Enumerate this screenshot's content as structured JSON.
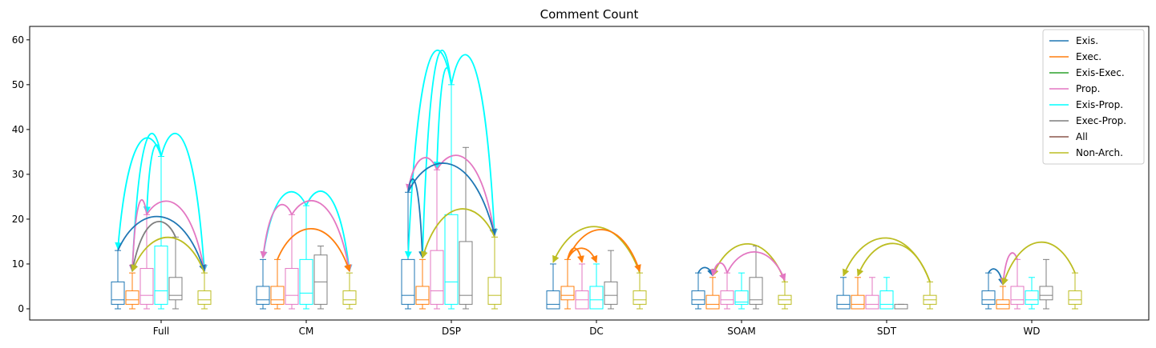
{
  "chart_data": {
    "type": "box",
    "title": "Comment Count",
    "xlabel": "",
    "ylabel": "",
    "ylim": [
      -2.5,
      63
    ],
    "yticks": [
      0,
      10,
      20,
      30,
      40,
      50,
      60
    ],
    "categories": [
      "Full",
      "CM",
      "DSP",
      "DC",
      "SOAM",
      "SDT",
      "WD"
    ],
    "series": [
      {
        "name": "Exis.",
        "color": "#1f77b4"
      },
      {
        "name": "Exec.",
        "color": "#ff7f0e"
      },
      {
        "name": "Exis-Exec.",
        "color": "#2ca02c"
      },
      {
        "name": "Prop.",
        "color": "#e377c2"
      },
      {
        "name": "Exis-Prop.",
        "color": "#00ffff"
      },
      {
        "name": "Exec-Prop.",
        "color": "#7f7f7f"
      },
      {
        "name": "All",
        "color": "#8c564b"
      },
      {
        "name": "Non-Arch.",
        "color": "#bcbd22"
      }
    ],
    "legend_position": "top-right",
    "boxes": [
      {
        "category": "Full",
        "series": "Exis.",
        "whislo": 0,
        "q1": 1,
        "med": 2,
        "q3": 6,
        "whishi": 13
      },
      {
        "category": "Full",
        "series": "Exec.",
        "whislo": 0,
        "q1": 1,
        "med": 2,
        "q3": 4,
        "whishi": 8
      },
      {
        "category": "Full",
        "series": "Prop.",
        "whislo": 0,
        "q1": 1,
        "med": 3,
        "q3": 9,
        "whishi": 21
      },
      {
        "category": "Full",
        "series": "Exis-Prop.",
        "whislo": 0,
        "q1": 1,
        "med": 4,
        "q3": 14,
        "whishi": 34
      },
      {
        "category": "Full",
        "series": "Exec-Prop.",
        "whislo": 0,
        "q1": 2,
        "med": 3,
        "q3": 7,
        "whishi": 16
      },
      {
        "category": "Full",
        "series": "Non-Arch.",
        "whislo": 0,
        "q1": 1,
        "med": 2,
        "q3": 4,
        "whishi": 8
      },
      {
        "category": "CM",
        "series": "Exis.",
        "whislo": 0,
        "q1": 1,
        "med": 2,
        "q3": 5,
        "whishi": 11
      },
      {
        "category": "CM",
        "series": "Exec.",
        "whislo": 0,
        "q1": 1,
        "med": 2,
        "q3": 5,
        "whishi": 11
      },
      {
        "category": "CM",
        "series": "Prop.",
        "whislo": 0,
        "q1": 1,
        "med": 3,
        "q3": 9,
        "whishi": 21
      },
      {
        "category": "CM",
        "series": "Exis-Prop.",
        "whislo": 0,
        "q1": 1,
        "med": 3.5,
        "q3": 11,
        "whishi": 23
      },
      {
        "category": "CM",
        "series": "Exec-Prop.",
        "whislo": 0,
        "q1": 1,
        "med": 6,
        "q3": 12,
        "whishi": 14
      },
      {
        "category": "CM",
        "series": "Non-Arch.",
        "whislo": 0,
        "q1": 1,
        "med": 2,
        "q3": 4,
        "whishi": 8
      },
      {
        "category": "DSP",
        "series": "Exis.",
        "whislo": 0,
        "q1": 1,
        "med": 3,
        "q3": 11,
        "whishi": 26
      },
      {
        "category": "DSP",
        "series": "Exec.",
        "whislo": 0,
        "q1": 1,
        "med": 2,
        "q3": 5,
        "whishi": 11
      },
      {
        "category": "DSP",
        "series": "Prop.",
        "whislo": 0,
        "q1": 1,
        "med": 4,
        "q3": 13,
        "whishi": 31
      },
      {
        "category": "DSP",
        "series": "Exis-Prop.",
        "whislo": 0,
        "q1": 1,
        "med": 6,
        "q3": 21,
        "whishi": 50
      },
      {
        "category": "DSP",
        "series": "Exec-Prop.",
        "whislo": 0,
        "q1": 1,
        "med": 3,
        "q3": 15,
        "whishi": 36
      },
      {
        "category": "DSP",
        "series": "Non-Arch.",
        "whislo": 0,
        "q1": 1,
        "med": 3,
        "q3": 7,
        "whishi": 16
      },
      {
        "category": "DC",
        "series": "Exis.",
        "whislo": 0,
        "q1": 0,
        "med": 1,
        "q3": 4,
        "whishi": 10
      },
      {
        "category": "DC",
        "series": "Exec.",
        "whislo": 0,
        "q1": 2,
        "med": 3,
        "q3": 5,
        "whishi": 11
      },
      {
        "category": "DC",
        "series": "Prop.",
        "whislo": 0,
        "q1": 0,
        "med": 2,
        "q3": 4,
        "whishi": 10
      },
      {
        "category": "DC",
        "series": "Exis-Prop.",
        "whislo": 0,
        "q1": 0,
        "med": 2,
        "q3": 5,
        "whishi": 10
      },
      {
        "category": "DC",
        "series": "Exec-Prop.",
        "whislo": 0,
        "q1": 1,
        "med": 3,
        "q3": 6,
        "whishi": 13
      },
      {
        "category": "DC",
        "series": "Non-Arch.",
        "whislo": 0,
        "q1": 1,
        "med": 2,
        "q3": 4,
        "whishi": 8
      },
      {
        "category": "SOAM",
        "series": "Exis.",
        "whislo": 0,
        "q1": 1,
        "med": 2,
        "q3": 4,
        "whishi": 8
      },
      {
        "category": "SOAM",
        "series": "Exec.",
        "whislo": 0,
        "q1": 0,
        "med": 1,
        "q3": 3,
        "whishi": 7
      },
      {
        "category": "SOAM",
        "series": "Prop.",
        "whislo": 0,
        "q1": 1,
        "med": 2,
        "q3": 4,
        "whishi": 8
      },
      {
        "category": "SOAM",
        "series": "Exis-Prop.",
        "whislo": 0,
        "q1": 1,
        "med": 1.5,
        "q3": 4,
        "whishi": 8
      },
      {
        "category": "SOAM",
        "series": "Exec-Prop.",
        "whislo": 0,
        "q1": 1,
        "med": 2,
        "q3": 7,
        "whishi": 14
      },
      {
        "category": "SOAM",
        "series": "Non-Arch.",
        "whislo": 0,
        "q1": 1,
        "med": 2,
        "q3": 3,
        "whishi": 6
      },
      {
        "category": "SDT",
        "series": "Exis.",
        "whislo": 0,
        "q1": 0,
        "med": 1,
        "q3": 3,
        "whishi": 7
      },
      {
        "category": "SDT",
        "series": "Exec.",
        "whislo": 0,
        "q1": 0,
        "med": 1,
        "q3": 3,
        "whishi": 7
      },
      {
        "category": "SDT",
        "series": "Prop.",
        "whislo": 0,
        "q1": 0,
        "med": 1,
        "q3": 3,
        "whishi": 7
      },
      {
        "category": "SDT",
        "series": "Exis-Prop.",
        "whislo": 0,
        "q1": 0,
        "med": 1,
        "q3": 4,
        "whishi": 7
      },
      {
        "category": "SDT",
        "series": "Exec-Prop.",
        "whislo": 0,
        "q1": 0,
        "med": 0,
        "q3": 1,
        "whishi": 1
      },
      {
        "category": "SDT",
        "series": "Non-Arch.",
        "whislo": 0,
        "q1": 1,
        "med": 2,
        "q3": 3,
        "whishi": 6
      },
      {
        "category": "WD",
        "series": "Exis.",
        "whislo": 0,
        "q1": 1,
        "med": 2,
        "q3": 4,
        "whishi": 8
      },
      {
        "category": "WD",
        "series": "Exec.",
        "whislo": 0,
        "q1": 0,
        "med": 1,
        "q3": 2,
        "whishi": 5
      },
      {
        "category": "WD",
        "series": "Prop.",
        "whislo": 0,
        "q1": 1,
        "med": 2,
        "q3": 5,
        "whishi": 11
      },
      {
        "category": "WD",
        "series": "Exis-Prop.",
        "whislo": 0,
        "q1": 1,
        "med": 2,
        "q3": 4,
        "whishi": 7
      },
      {
        "category": "WD",
        "series": "Exec-Prop.",
        "whislo": 0,
        "q1": 2,
        "med": 3,
        "q3": 5,
        "whishi": 11
      },
      {
        "category": "WD",
        "series": "Non-Arch.",
        "whislo": 0,
        "q1": 1,
        "med": 2,
        "q3": 4,
        "whishi": 8
      }
    ],
    "arcs": [
      {
        "category": "Full",
        "from": "Exis-Prop.",
        "to": "Exis.",
        "y_from": 34,
        "y_to": 13,
        "peak": 34,
        "series": "Exis-Prop."
      },
      {
        "category": "Full",
        "from": "Exis-Prop.",
        "to": "Exec.",
        "y_from": 34,
        "y_to": 8,
        "peak": 34,
        "series": "Exis-Prop."
      },
      {
        "category": "Full",
        "from": "Exis-Prop.",
        "to": "Prop.",
        "y_from": 34,
        "y_to": 21,
        "peak": 34,
        "series": "Exis-Prop."
      },
      {
        "category": "Full",
        "from": "Exis-Prop.",
        "to": "Non-Arch.",
        "y_from": 34,
        "y_to": 8,
        "peak": 34,
        "series": "Exis-Prop."
      },
      {
        "category": "Full",
        "from": "Prop.",
        "to": "Exec.",
        "y_from": 21,
        "y_to": 8,
        "peak": 21.8,
        "series": "Prop."
      },
      {
        "category": "Full",
        "from": "Prop.",
        "to": "Non-Arch.",
        "y_from": 21,
        "y_to": 8,
        "peak": 21.5,
        "series": "Prop."
      },
      {
        "category": "Full",
        "from": "Exis.",
        "to": "Non-Arch.",
        "y_from": 13,
        "y_to": 8,
        "peak": 19.7,
        "series": "Exis."
      },
      {
        "category": "Full",
        "from": "Exec-Prop.",
        "to": "Exec.",
        "y_from": 16,
        "y_to": 8,
        "peak": 18,
        "series": "Exec-Prop."
      },
      {
        "category": "Full",
        "from": "Non-Arch.",
        "to": "Exec.",
        "y_from": 8,
        "y_to": 8,
        "peak": 15.8,
        "series": "Non-Arch."
      },
      {
        "category": "CM",
        "from": "Exis-Prop.",
        "to": "Exis.",
        "y_from": 23,
        "y_to": 11,
        "peak": 23.8,
        "series": "Exis-Prop."
      },
      {
        "category": "CM",
        "from": "Exis-Prop.",
        "to": "Non-Arch.",
        "y_from": 23,
        "y_to": 8,
        "peak": 23.3,
        "series": "Exis-Prop."
      },
      {
        "category": "CM",
        "from": "Prop.",
        "to": "Exis.",
        "y_from": 21,
        "y_to": 11,
        "peak": 21.3,
        "series": "Prop."
      },
      {
        "category": "CM",
        "from": "Prop.",
        "to": "Non-Arch.",
        "y_from": 21,
        "y_to": 8,
        "peak": 21.6,
        "series": "Prop."
      },
      {
        "category": "CM",
        "from": "Exec.",
        "to": "Non-Arch.",
        "y_from": 11,
        "y_to": 8,
        "peak": 17.3,
        "series": "Exec."
      },
      {
        "category": "DSP",
        "from": "Exis-Prop.",
        "to": "Exis.",
        "y_from": 50,
        "y_to": 11,
        "peak": 50,
        "series": "Exis-Prop."
      },
      {
        "category": "DSP",
        "from": "Exis-Prop.",
        "to": "Exec.",
        "y_from": 50,
        "y_to": 11,
        "peak": 50,
        "series": "Exis-Prop."
      },
      {
        "category": "DSP",
        "from": "Exis-Prop.",
        "to": "Prop.",
        "y_from": 50,
        "y_to": 31,
        "peak": 50,
        "series": "Exis-Prop."
      },
      {
        "category": "DSP",
        "from": "Exis-Prop.",
        "to": "Non-Arch.",
        "y_from": 50,
        "y_to": 16,
        "peak": 50,
        "series": "Exis-Prop."
      },
      {
        "category": "DSP",
        "from": "Prop.",
        "to": "Exis.",
        "y_from": 31,
        "y_to": 26,
        "peak": 32.8,
        "series": "Prop."
      },
      {
        "category": "DSP",
        "from": "Prop.",
        "to": "Non-Arch.",
        "y_from": 31,
        "y_to": 16,
        "peak": 31.3,
        "series": "Prop."
      },
      {
        "category": "DSP",
        "from": "Exis.",
        "to": "Exec.",
        "y_from": 26,
        "y_to": 11,
        "peak": 26,
        "series": "Exis."
      },
      {
        "category": "DSP",
        "from": "Exis.",
        "to": "Non-Arch.",
        "y_from": 26,
        "y_to": 16,
        "peak": 30.7,
        "series": "Exis."
      },
      {
        "category": "DSP",
        "from": "Non-Arch.",
        "to": "Exec.",
        "y_from": 16,
        "y_to": 11,
        "peak": 21.4,
        "series": "Non-Arch."
      },
      {
        "category": "DC",
        "from": "Non-Arch.",
        "to": "Exis.",
        "y_from": 8,
        "y_to": 10,
        "peak": 17.9,
        "series": "Non-Arch."
      },
      {
        "category": "DC",
        "from": "Exec.",
        "to": "Non-Arch.",
        "y_from": 11,
        "y_to": 8,
        "peak": 17.1,
        "series": "Exec."
      },
      {
        "category": "DC",
        "from": "Exec.",
        "to": "Prop.",
        "y_from": 11,
        "y_to": 10,
        "peak": 13.3,
        "series": "Exec."
      },
      {
        "category": "DC",
        "from": "Exec.",
        "to": "Exis-Prop.",
        "y_from": 11,
        "y_to": 10,
        "peak": 13.3,
        "series": "Exec."
      },
      {
        "category": "SOAM",
        "from": "Exis.",
        "to": "Exec.",
        "y_from": 8,
        "y_to": 7,
        "peak": 9,
        "series": "Exis."
      },
      {
        "category": "SOAM",
        "from": "Non-Arch.",
        "to": "Exec.",
        "y_from": 6,
        "y_to": 7,
        "peak": 14.2,
        "series": "Non-Arch."
      },
      {
        "category": "SOAM",
        "from": "Prop.",
        "to": "Exec.",
        "y_from": 8,
        "y_to": 7,
        "peak": 10,
        "series": "Prop."
      },
      {
        "category": "SOAM",
        "from": "Prop.",
        "to": "Non-Arch.",
        "y_from": 8,
        "y_to": 6,
        "peak": 12.3,
        "series": "Prop."
      },
      {
        "category": "SDT",
        "from": "Non-Arch.",
        "to": "Exis.",
        "y_from": 6,
        "y_to": 7,
        "peak": 15.5,
        "series": "Non-Arch."
      },
      {
        "category": "SDT",
        "from": "Non-Arch.",
        "to": "Exec.",
        "y_from": 6,
        "y_to": 7,
        "peak": 14.3,
        "series": "Non-Arch."
      },
      {
        "category": "WD",
        "from": "Exis.",
        "to": "Exec.",
        "y_from": 8,
        "y_to": 5,
        "peak": 8.3,
        "series": "Exis."
      },
      {
        "category": "WD",
        "from": "Prop.",
        "to": "Exec.",
        "y_from": 11,
        "y_to": 5,
        "peak": 11.3,
        "series": "Prop."
      },
      {
        "category": "WD",
        "from": "Non-Arch.",
        "to": "Exec.",
        "y_from": 8,
        "y_to": 5,
        "peak": 14.3,
        "series": "Non-Arch."
      }
    ]
  }
}
